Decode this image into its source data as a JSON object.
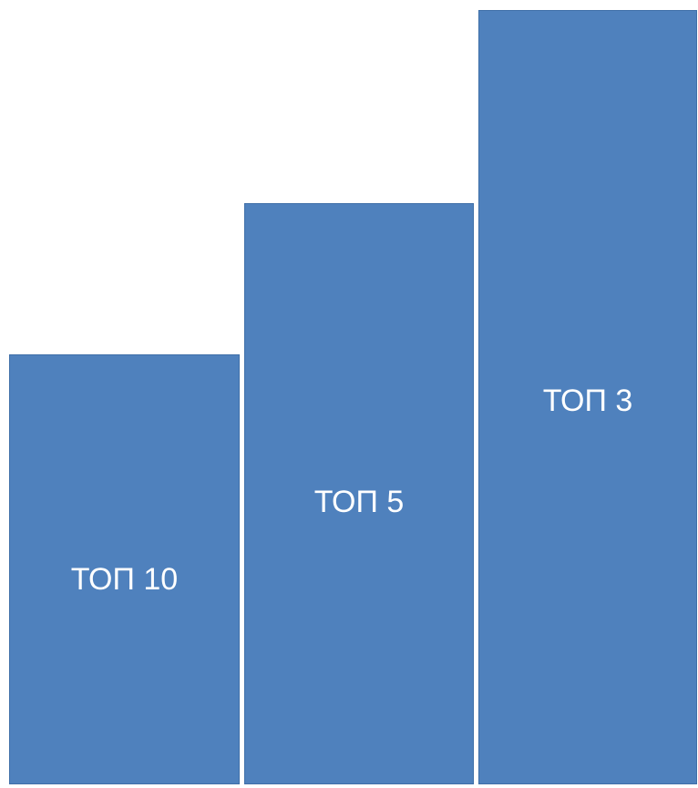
{
  "blocks": [
    {
      "id": "top10",
      "label": "ТОП 10",
      "level": 1
    },
    {
      "id": "top5",
      "label": "ТОП 5",
      "level": 2
    },
    {
      "id": "top3",
      "label": "ТОП 3",
      "level": 3
    }
  ],
  "colors": {
    "block_fill": "#4f81bd",
    "label_text": "#ffffff",
    "background": "#ffffff"
  }
}
